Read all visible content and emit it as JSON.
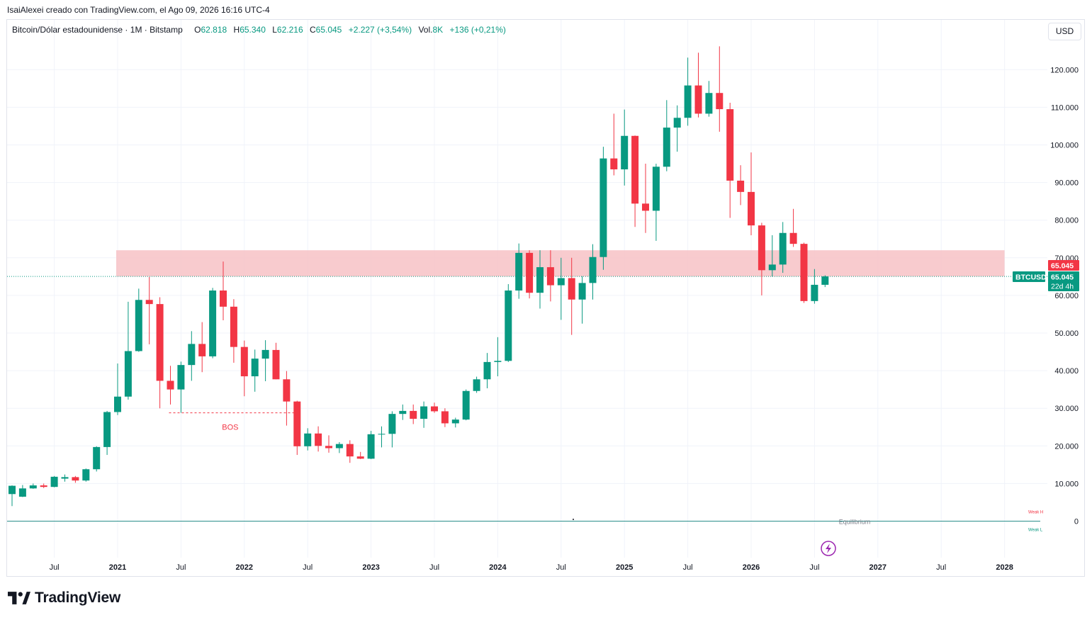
{
  "header": {
    "author_line": "IsaiAlexei creado con TradingView.com, el Ago 09, 2026 16:16 UTC-4"
  },
  "legend": {
    "symbol": "Bitcoin/Dólar estadounidense · 1M · Bitstamp",
    "open_label": "O",
    "open": "62.818",
    "high_label": "H",
    "high": "65.340",
    "low_label": "L",
    "low": "62.216",
    "close_label": "C",
    "close": "65.045",
    "change": "+2.227 (+3,54%)",
    "vol_label": "Vol.",
    "vol": "8K",
    "vol_change": "+136 (+0,21%)"
  },
  "currency_button": "USD",
  "brand": {
    "name": "TradingView"
  },
  "colors": {
    "up": "#089981",
    "down": "#f23645",
    "zone": "#f7c2c5",
    "grid": "#f0f3fa",
    "axis_text": "#131722",
    "equilibrium": "#2a8f8b",
    "bos": "#f23645",
    "lightning": "#9c27b0"
  },
  "chart_data": {
    "type": "candlestick",
    "symbol": "BTCUSD",
    "interval": "1M",
    "ylim": [
      -10000,
      132000
    ],
    "y_ticks": [
      {
        "value": 0,
        "label": "0"
      },
      {
        "value": 10000,
        "label": "10.000"
      },
      {
        "value": 20000,
        "label": "20.000"
      },
      {
        "value": 30000,
        "label": "30.000"
      },
      {
        "value": 40000,
        "label": "40.000"
      },
      {
        "value": 50000,
        "label": "50.000"
      },
      {
        "value": 60000,
        "label": "60.000"
      },
      {
        "value": 70000,
        "label": "70.000"
      },
      {
        "value": 80000,
        "label": "80.000"
      },
      {
        "value": 90000,
        "label": "90.000"
      },
      {
        "value": 100000,
        "label": "100.000"
      },
      {
        "value": 110000,
        "label": "110.000"
      },
      {
        "value": 120000,
        "label": "120.000"
      }
    ],
    "x_ticks": [
      {
        "index": 4,
        "label": "Jul",
        "bold": false
      },
      {
        "index": 10,
        "label": "2021",
        "bold": true
      },
      {
        "index": 16,
        "label": "Jul",
        "bold": false
      },
      {
        "index": 22,
        "label": "2022",
        "bold": true
      },
      {
        "index": 28,
        "label": "Jul",
        "bold": false
      },
      {
        "index": 34,
        "label": "2023",
        "bold": true
      },
      {
        "index": 40,
        "label": "Jul",
        "bold": false
      },
      {
        "index": 46,
        "label": "2024",
        "bold": true
      },
      {
        "index": 52,
        "label": "Jul",
        "bold": false
      },
      {
        "index": 58,
        "label": "2025",
        "bold": true
      },
      {
        "index": 64,
        "label": "Jul",
        "bold": false
      },
      {
        "index": 70,
        "label": "2026",
        "bold": true
      },
      {
        "index": 76,
        "label": "Jul",
        "bold": false
      },
      {
        "index": 82,
        "label": "2027",
        "bold": true
      },
      {
        "index": 88,
        "label": "Jul",
        "bold": false
      },
      {
        "index": 94,
        "label": "2028",
        "bold": true
      }
    ],
    "candles": [
      {
        "t": "2020-01",
        "o": 7200,
        "h": 9500,
        "l": 4000,
        "c": 9400
      },
      {
        "t": "2020-02",
        "o": 6500,
        "h": 9600,
        "l": 6400,
        "c": 8700
      },
      {
        "t": "2020-03",
        "o": 8700,
        "h": 10000,
        "l": 8600,
        "c": 9500
      },
      {
        "t": "2020-04",
        "o": 9500,
        "h": 10000,
        "l": 8800,
        "c": 9100
      },
      {
        "t": "2020-05",
        "o": 9100,
        "h": 12000,
        "l": 9000,
        "c": 11800
      },
      {
        "t": "2020-06",
        "o": 11300,
        "h": 12400,
        "l": 10500,
        "c": 11700
      },
      {
        "t": "2020-07",
        "o": 11700,
        "h": 12000,
        "l": 10200,
        "c": 10800
      },
      {
        "t": "2020-08",
        "o": 10800,
        "h": 14000,
        "l": 10500,
        "c": 13800
      },
      {
        "t": "2020-09",
        "o": 13800,
        "h": 19900,
        "l": 13200,
        "c": 19700
      },
      {
        "t": "2020-10",
        "o": 19700,
        "h": 29300,
        "l": 17600,
        "c": 29000
      },
      {
        "t": "2020-11",
        "o": 29000,
        "h": 41900,
        "l": 28200,
        "c": 33100
      },
      {
        "t": "2020-12",
        "o": 33100,
        "h": 58300,
        "l": 32300,
        "c": 45200
      },
      {
        "t": "2021-01",
        "o": 45200,
        "h": 61800,
        "l": 45000,
        "c": 58800
      },
      {
        "t": "2021-02",
        "o": 58800,
        "h": 64900,
        "l": 47000,
        "c": 57700
      },
      {
        "t": "2021-03",
        "o": 57700,
        "h": 59500,
        "l": 30000,
        "c": 37300
      },
      {
        "t": "2021-04",
        "o": 37300,
        "h": 41300,
        "l": 31000,
        "c": 35000
      },
      {
        "t": "2021-05",
        "o": 35000,
        "h": 42400,
        "l": 28800,
        "c": 41500
      },
      {
        "t": "2021-06",
        "o": 41500,
        "h": 50500,
        "l": 37300,
        "c": 47100
      },
      {
        "t": "2021-07",
        "o": 47100,
        "h": 52900,
        "l": 39600,
        "c": 43800
      },
      {
        "t": "2021-08",
        "o": 43800,
        "h": 62000,
        "l": 43300,
        "c": 61300
      },
      {
        "t": "2021-09",
        "o": 61300,
        "h": 69000,
        "l": 53400,
        "c": 57000
      },
      {
        "t": "2021-10",
        "o": 57000,
        "h": 59000,
        "l": 42100,
        "c": 46300
      },
      {
        "t": "2021-11",
        "o": 46300,
        "h": 48000,
        "l": 33200,
        "c": 38500
      },
      {
        "t": "2021-12",
        "o": 38500,
        "h": 45600,
        "l": 34400,
        "c": 43200
      },
      {
        "t": "2022-01",
        "o": 43200,
        "h": 48100,
        "l": 37200,
        "c": 45500
      },
      {
        "t": "2022-02",
        "o": 45500,
        "h": 47400,
        "l": 37700,
        "c": 37700
      },
      {
        "t": "2022-03",
        "o": 37700,
        "h": 39900,
        "l": 25400,
        "c": 31800
      },
      {
        "t": "2022-04",
        "o": 31800,
        "h": 32000,
        "l": 17600,
        "c": 19900
      },
      {
        "t": "2022-05",
        "o": 19900,
        "h": 24700,
        "l": 18800,
        "c": 23300
      },
      {
        "t": "2022-06",
        "o": 23300,
        "h": 25200,
        "l": 18500,
        "c": 20000
      },
      {
        "t": "2022-07",
        "o": 20000,
        "h": 22800,
        "l": 18200,
        "c": 19400
      },
      {
        "t": "2022-08",
        "o": 19400,
        "h": 21000,
        "l": 18100,
        "c": 20500
      },
      {
        "t": "2022-09",
        "o": 20500,
        "h": 21500,
        "l": 15500,
        "c": 17200
      },
      {
        "t": "2022-10",
        "o": 17200,
        "h": 18400,
        "l": 16500,
        "c": 16600
      },
      {
        "t": "2022-11",
        "o": 16600,
        "h": 24000,
        "l": 16500,
        "c": 23100
      },
      {
        "t": "2022-12",
        "o": 23100,
        "h": 25200,
        "l": 19600,
        "c": 23200
      },
      {
        "t": "2023-01",
        "o": 23200,
        "h": 29200,
        "l": 19600,
        "c": 28500
      },
      {
        "t": "2023-02",
        "o": 28500,
        "h": 31000,
        "l": 26900,
        "c": 29300
      },
      {
        "t": "2023-03",
        "o": 29300,
        "h": 31000,
        "l": 25800,
        "c": 27200
      },
      {
        "t": "2023-04",
        "o": 27200,
        "h": 31800,
        "l": 24800,
        "c": 30500
      },
      {
        "t": "2023-05",
        "o": 30500,
        "h": 31500,
        "l": 28800,
        "c": 29200
      },
      {
        "t": "2023-06",
        "o": 29200,
        "h": 30000,
        "l": 25000,
        "c": 26000
      },
      {
        "t": "2023-07",
        "o": 26000,
        "h": 27500,
        "l": 24900,
        "c": 27000
      },
      {
        "t": "2023-08",
        "o": 27000,
        "h": 35000,
        "l": 26800,
        "c": 34600
      },
      {
        "t": "2023-09",
        "o": 34600,
        "h": 38400,
        "l": 34100,
        "c": 37700
      },
      {
        "t": "2023-10",
        "o": 37700,
        "h": 44700,
        "l": 35300,
        "c": 42300
      },
      {
        "t": "2023-11",
        "o": 42300,
        "h": 48900,
        "l": 38500,
        "c": 42600
      },
      {
        "t": "2023-12",
        "o": 42600,
        "h": 63000,
        "l": 42300,
        "c": 61300
      },
      {
        "t": "2024-01",
        "o": 61300,
        "h": 73800,
        "l": 59100,
        "c": 71300
      },
      {
        "t": "2024-02",
        "o": 71300,
        "h": 72000,
        "l": 59200,
        "c": 60700
      },
      {
        "t": "2024-03",
        "o": 60700,
        "h": 72000,
        "l": 56500,
        "c": 67500
      },
      {
        "t": "2024-04",
        "o": 67500,
        "h": 72000,
        "l": 58400,
        "c": 62700
      },
      {
        "t": "2024-05",
        "o": 62700,
        "h": 70000,
        "l": 53500,
        "c": 64600
      },
      {
        "t": "2024-06",
        "o": 64600,
        "h": 70000,
        "l": 49500,
        "c": 58900
      },
      {
        "t": "2024-07",
        "o": 58900,
        "h": 65100,
        "l": 52500,
        "c": 63300
      },
      {
        "t": "2024-08",
        "o": 63300,
        "h": 73600,
        "l": 58900,
        "c": 70200
      },
      {
        "t": "2024-09",
        "o": 70200,
        "h": 99500,
        "l": 66800,
        "c": 96400
      },
      {
        "t": "2024-10",
        "o": 96400,
        "h": 108300,
        "l": 91900,
        "c": 93500
      },
      {
        "t": "2024-11",
        "o": 93500,
        "h": 109400,
        "l": 89200,
        "c": 102400
      },
      {
        "t": "2024-12",
        "o": 102400,
        "h": 102500,
        "l": 78200,
        "c": 84400
      },
      {
        "t": "2025-01",
        "o": 84400,
        "h": 95000,
        "l": 76600,
        "c": 82500
      },
      {
        "t": "2025-02",
        "o": 82500,
        "h": 95000,
        "l": 74500,
        "c": 94200
      },
      {
        "t": "2025-03",
        "o": 94200,
        "h": 111900,
        "l": 93000,
        "c": 104600
      },
      {
        "t": "2025-04",
        "o": 104600,
        "h": 110500,
        "l": 98200,
        "c": 107200
      },
      {
        "t": "2025-05",
        "o": 107200,
        "h": 123200,
        "l": 105100,
        "c": 115800
      },
      {
        "t": "2025-06",
        "o": 115800,
        "h": 124500,
        "l": 107300,
        "c": 108300
      },
      {
        "t": "2025-07",
        "o": 108300,
        "h": 117000,
        "l": 107500,
        "c": 113800
      },
      {
        "t": "2025-08",
        "o": 113800,
        "h": 126200,
        "l": 103500,
        "c": 109500
      },
      {
        "t": "2025-09",
        "o": 109500,
        "h": 111200,
        "l": 80600,
        "c": 90500
      },
      {
        "t": "2025-10",
        "o": 90500,
        "h": 94600,
        "l": 84000,
        "c": 87500
      },
      {
        "t": "2025-11",
        "o": 87500,
        "h": 98000,
        "l": 76000,
        "c": 78600
      },
      {
        "t": "2025-12",
        "o": 78600,
        "h": 79300,
        "l": 60000,
        "c": 66700
      },
      {
        "t": "2026-01",
        "o": 66700,
        "h": 76000,
        "l": 65000,
        "c": 68200
      },
      {
        "t": "2026-02",
        "o": 68200,
        "h": 79500,
        "l": 66000,
        "c": 76600
      },
      {
        "t": "2026-03",
        "o": 76600,
        "h": 83000,
        "l": 72900,
        "c": 73700
      },
      {
        "t": "2026-04",
        "o": 73700,
        "h": 74000,
        "l": 58000,
        "c": 58500
      },
      {
        "t": "2026-05",
        "o": 58500,
        "h": 67000,
        "l": 57800,
        "c": 62818
      },
      {
        "t": "2026-06",
        "o": 62818,
        "h": 65340,
        "l": 62216,
        "c": 65045
      }
    ],
    "zone": {
      "from": 65045,
      "to": 72000,
      "start_index": 10,
      "end_index": 94
    },
    "bos": {
      "price": 28800,
      "start_index": 15,
      "end_index": 27,
      "label": "BOS"
    },
    "equilibrium": {
      "price": 0,
      "label": "Equilibrium"
    },
    "weak_labels": {
      "high": "Weak H",
      "low": "Weak L"
    },
    "current_price": {
      "value": 65045,
      "label": "65.045"
    },
    "price_tags": {
      "zone_top": "65.045",
      "symbol": "BTCUSD",
      "price": "65.045",
      "countdown": "22d 4h"
    }
  }
}
